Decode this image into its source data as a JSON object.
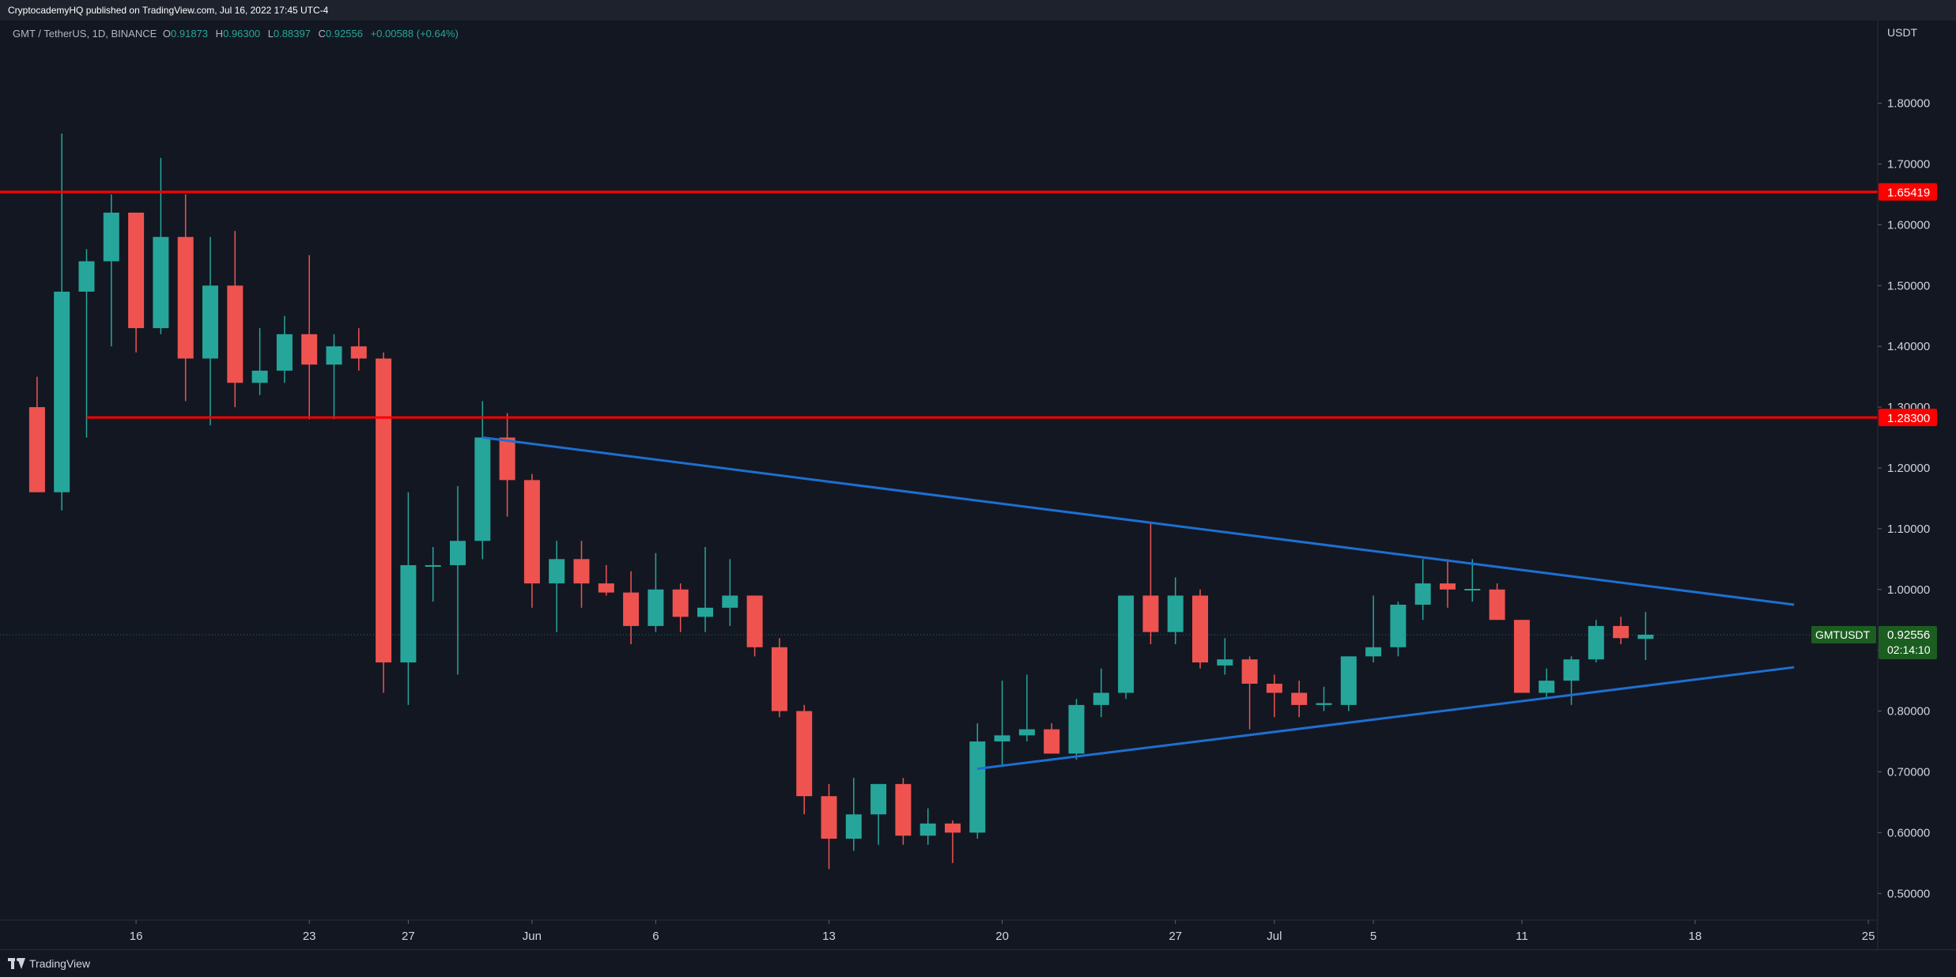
{
  "header": {
    "published_by": "CryptocademyHQ published on TradingView.com, Jul 16, 2022 17:45 UTC-4"
  },
  "legend": {
    "symbol": "GMT / TetherUS, 1D, BINANCE",
    "open_label": "O",
    "open": "0.91873",
    "high_label": "H",
    "high": "0.96300",
    "low_label": "L",
    "low": "0.88397",
    "close_label": "C",
    "close": "0.92556",
    "change": "+0.00588 (+0.64%)"
  },
  "footer": {
    "brand": "TradingView",
    "brand_icon": "tradingview-logo-icon"
  },
  "colors": {
    "background": "#131722",
    "up": "#26a69a",
    "down": "#ef5350",
    "support_resistance": "#ff0000",
    "trendline": "#1e6fd0",
    "text": "#d1d4dc"
  },
  "chart_data": {
    "type": "candlestick",
    "symbol": "GMTUSDT",
    "quote_currency": "USDT",
    "timeframe": "1D",
    "exchange": "BINANCE",
    "ylim": [
      0.408,
      1.936
    ],
    "xlim": [
      "2022-05-10",
      "2022-07-26"
    ],
    "grid": false,
    "price_axis_unit": "USDT",
    "y_ticks": [
      "0.50000",
      "0.60000",
      "0.70000",
      "0.80000",
      "0.90000",
      "1.00000",
      "1.10000",
      "1.20000",
      "1.30000",
      "1.40000",
      "1.50000",
      "1.60000",
      "1.70000",
      "1.80000"
    ],
    "x_ticks": [
      {
        "date": "2022-05-16",
        "label": "16"
      },
      {
        "date": "2022-05-23",
        "label": "23"
      },
      {
        "date": "2022-05-27",
        "label": "27"
      },
      {
        "date": "2022-06-01",
        "label": "Jun"
      },
      {
        "date": "2022-06-06",
        "label": "6"
      },
      {
        "date": "2022-06-13",
        "label": "13"
      },
      {
        "date": "2022-06-20",
        "label": "20"
      },
      {
        "date": "2022-06-27",
        "label": "27"
      },
      {
        "date": "2022-07-01",
        "label": "Jul"
      },
      {
        "date": "2022-07-05",
        "label": "5"
      },
      {
        "date": "2022-07-11",
        "label": "11"
      },
      {
        "date": "2022-07-18",
        "label": "18"
      },
      {
        "date": "2022-07-25",
        "label": "25"
      }
    ],
    "candles": [
      {
        "date": "2022-05-12",
        "o": 1.3,
        "h": 1.35,
        "l": 1.16,
        "c": 1.16
      },
      {
        "date": "2022-05-13",
        "o": 1.16,
        "h": 1.75,
        "l": 1.13,
        "c": 1.49
      },
      {
        "date": "2022-05-14",
        "o": 1.49,
        "h": 1.56,
        "l": 1.25,
        "c": 1.54
      },
      {
        "date": "2022-05-15",
        "o": 1.54,
        "h": 1.65,
        "l": 1.4,
        "c": 1.62
      },
      {
        "date": "2022-05-16",
        "o": 1.62,
        "h": 1.62,
        "l": 1.39,
        "c": 1.43
      },
      {
        "date": "2022-05-17",
        "o": 1.43,
        "h": 1.71,
        "l": 1.42,
        "c": 1.58
      },
      {
        "date": "2022-05-18",
        "o": 1.58,
        "h": 1.65,
        "l": 1.31,
        "c": 1.38
      },
      {
        "date": "2022-05-19",
        "o": 1.38,
        "h": 1.58,
        "l": 1.27,
        "c": 1.5
      },
      {
        "date": "2022-05-20",
        "o": 1.5,
        "h": 1.59,
        "l": 1.3,
        "c": 1.34
      },
      {
        "date": "2022-05-21",
        "o": 1.34,
        "h": 1.43,
        "l": 1.32,
        "c": 1.36
      },
      {
        "date": "2022-05-22",
        "o": 1.36,
        "h": 1.45,
        "l": 1.34,
        "c": 1.42
      },
      {
        "date": "2022-05-23",
        "o": 1.42,
        "h": 1.55,
        "l": 1.28,
        "c": 1.37
      },
      {
        "date": "2022-05-24",
        "o": 1.37,
        "h": 1.42,
        "l": 1.28,
        "c": 1.4
      },
      {
        "date": "2022-05-25",
        "o": 1.4,
        "h": 1.43,
        "l": 1.36,
        "c": 1.38
      },
      {
        "date": "2022-05-26",
        "o": 1.38,
        "h": 1.39,
        "l": 0.83,
        "c": 0.88
      },
      {
        "date": "2022-05-27",
        "o": 0.88,
        "h": 1.16,
        "l": 0.81,
        "c": 1.04
      },
      {
        "date": "2022-05-28",
        "o": 1.04,
        "h": 1.07,
        "l": 0.98,
        "c": 1.04
      },
      {
        "date": "2022-05-29",
        "o": 1.04,
        "h": 1.17,
        "l": 0.86,
        "c": 1.08
      },
      {
        "date": "2022-05-30",
        "o": 1.08,
        "h": 1.31,
        "l": 1.05,
        "c": 1.25
      },
      {
        "date": "2022-05-31",
        "o": 1.25,
        "h": 1.29,
        "l": 1.12,
        "c": 1.18
      },
      {
        "date": "2022-06-01",
        "o": 1.18,
        "h": 1.19,
        "l": 0.97,
        "c": 1.01
      },
      {
        "date": "2022-06-02",
        "o": 1.01,
        "h": 1.08,
        "l": 0.93,
        "c": 1.05
      },
      {
        "date": "2022-06-03",
        "o": 1.05,
        "h": 1.08,
        "l": 0.97,
        "c": 1.01
      },
      {
        "date": "2022-06-04",
        "o": 1.01,
        "h": 1.04,
        "l": 0.99,
        "c": 0.995
      },
      {
        "date": "2022-06-05",
        "o": 0.995,
        "h": 1.03,
        "l": 0.91,
        "c": 0.94
      },
      {
        "date": "2022-06-06",
        "o": 0.94,
        "h": 1.06,
        "l": 0.93,
        "c": 1.0
      },
      {
        "date": "2022-06-07",
        "o": 1.0,
        "h": 1.01,
        "l": 0.93,
        "c": 0.955
      },
      {
        "date": "2022-06-08",
        "o": 0.955,
        "h": 1.07,
        "l": 0.93,
        "c": 0.97
      },
      {
        "date": "2022-06-09",
        "o": 0.97,
        "h": 1.05,
        "l": 0.94,
        "c": 0.99
      },
      {
        "date": "2022-06-10",
        "o": 0.99,
        "h": 0.99,
        "l": 0.89,
        "c": 0.905
      },
      {
        "date": "2022-06-11",
        "o": 0.905,
        "h": 0.92,
        "l": 0.79,
        "c": 0.8
      },
      {
        "date": "2022-06-12",
        "o": 0.8,
        "h": 0.81,
        "l": 0.63,
        "c": 0.66
      },
      {
        "date": "2022-06-13",
        "o": 0.66,
        "h": 0.68,
        "l": 0.54,
        "c": 0.59
      },
      {
        "date": "2022-06-14",
        "o": 0.59,
        "h": 0.69,
        "l": 0.57,
        "c": 0.63
      },
      {
        "date": "2022-06-15",
        "o": 0.63,
        "h": 0.68,
        "l": 0.58,
        "c": 0.68
      },
      {
        "date": "2022-06-16",
        "o": 0.68,
        "h": 0.69,
        "l": 0.58,
        "c": 0.595
      },
      {
        "date": "2022-06-17",
        "o": 0.595,
        "h": 0.64,
        "l": 0.58,
        "c": 0.615
      },
      {
        "date": "2022-06-18",
        "o": 0.615,
        "h": 0.62,
        "l": 0.55,
        "c": 0.6
      },
      {
        "date": "2022-06-19",
        "o": 0.6,
        "h": 0.78,
        "l": 0.59,
        "c": 0.75
      },
      {
        "date": "2022-06-20",
        "o": 0.75,
        "h": 0.85,
        "l": 0.71,
        "c": 0.76
      },
      {
        "date": "2022-06-21",
        "o": 0.76,
        "h": 0.86,
        "l": 0.75,
        "c": 0.77
      },
      {
        "date": "2022-06-22",
        "o": 0.77,
        "h": 0.78,
        "l": 0.73,
        "c": 0.73
      },
      {
        "date": "2022-06-23",
        "o": 0.73,
        "h": 0.82,
        "l": 0.72,
        "c": 0.81
      },
      {
        "date": "2022-06-24",
        "o": 0.81,
        "h": 0.87,
        "l": 0.79,
        "c": 0.83
      },
      {
        "date": "2022-06-25",
        "o": 0.83,
        "h": 0.99,
        "l": 0.82,
        "c": 0.99
      },
      {
        "date": "2022-06-26",
        "o": 0.99,
        "h": 1.11,
        "l": 0.91,
        "c": 0.93
      },
      {
        "date": "2022-06-27",
        "o": 0.93,
        "h": 1.02,
        "l": 0.91,
        "c": 0.99
      },
      {
        "date": "2022-06-28",
        "o": 0.99,
        "h": 1.0,
        "l": 0.87,
        "c": 0.88
      },
      {
        "date": "2022-06-29",
        "o": 0.875,
        "h": 0.92,
        "l": 0.86,
        "c": 0.885
      },
      {
        "date": "2022-06-30",
        "o": 0.885,
        "h": 0.89,
        "l": 0.77,
        "c": 0.845
      },
      {
        "date": "2022-07-01",
        "o": 0.845,
        "h": 0.86,
        "l": 0.79,
        "c": 0.83
      },
      {
        "date": "2022-07-02",
        "o": 0.83,
        "h": 0.85,
        "l": 0.79,
        "c": 0.81
      },
      {
        "date": "2022-07-03",
        "o": 0.81,
        "h": 0.84,
        "l": 0.8,
        "c": 0.813
      },
      {
        "date": "2022-07-04",
        "o": 0.81,
        "h": 0.89,
        "l": 0.8,
        "c": 0.89
      },
      {
        "date": "2022-07-05",
        "o": 0.89,
        "h": 0.99,
        "l": 0.88,
        "c": 0.905
      },
      {
        "date": "2022-07-06",
        "o": 0.905,
        "h": 0.98,
        "l": 0.89,
        "c": 0.975
      },
      {
        "date": "2022-07-07",
        "o": 0.975,
        "h": 1.05,
        "l": 0.95,
        "c": 1.01
      },
      {
        "date": "2022-07-08",
        "o": 1.01,
        "h": 1.05,
        "l": 0.97,
        "c": 1.0
      },
      {
        "date": "2022-07-09",
        "o": 1.0,
        "h": 1.05,
        "l": 0.98,
        "c": 1.001
      },
      {
        "date": "2022-07-10",
        "o": 1.0,
        "h": 1.01,
        "l": 0.95,
        "c": 0.95
      },
      {
        "date": "2022-07-11",
        "o": 0.95,
        "h": 0.95,
        "l": 0.83,
        "c": 0.83
      },
      {
        "date": "2022-07-12",
        "o": 0.83,
        "h": 0.87,
        "l": 0.82,
        "c": 0.85
      },
      {
        "date": "2022-07-13",
        "o": 0.85,
        "h": 0.89,
        "l": 0.81,
        "c": 0.885
      },
      {
        "date": "2022-07-14",
        "o": 0.885,
        "h": 0.95,
        "l": 0.88,
        "c": 0.94
      },
      {
        "date": "2022-07-15",
        "o": 0.94,
        "h": 0.955,
        "l": 0.91,
        "c": 0.92
      },
      {
        "date": "2022-07-16",
        "o": 0.91873,
        "h": 0.963,
        "l": 0.88397,
        "c": 0.92556
      }
    ],
    "horizontal_lines": [
      {
        "price": 1.65419,
        "label": "1.65419",
        "from": "2022-05-10"
      },
      {
        "price": 1.283,
        "label": "1.28300",
        "from": "2022-05-14"
      }
    ],
    "trendlines": [
      {
        "from": {
          "date": "2022-05-30",
          "price": 1.25
        },
        "to": {
          "date": "2022-07-22",
          "price": 0.975
        }
      },
      {
        "from": {
          "date": "2022-06-19",
          "price": 0.705
        },
        "to": {
          "date": "2022-07-22",
          "price": 0.872
        }
      }
    ],
    "last_price": {
      "symbol_label": "GMTUSDT",
      "price": "0.92556",
      "countdown": "02:14:10"
    }
  }
}
